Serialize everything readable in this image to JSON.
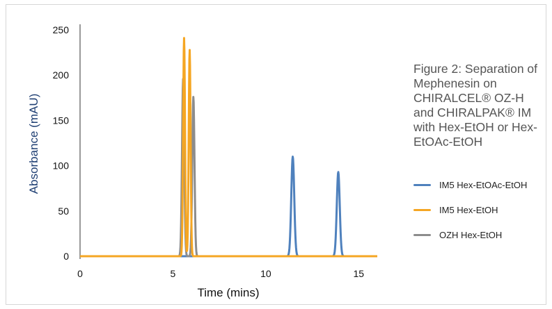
{
  "caption": "Figure 2: Separation of Mephenesin on CHIRALCEL® OZ-H and CHIRALPAK® IM with Hex-EtOH or Hex-EtOAc-EtOH",
  "chart_data": {
    "type": "line",
    "xlabel": "Time (mins)",
    "ylabel": "Absorbance (mAU)",
    "xlim": [
      0,
      16
    ],
    "ylim": [
      0,
      250
    ],
    "xticks": [
      0,
      5,
      10,
      15
    ],
    "yticks": [
      0,
      50,
      100,
      150,
      200,
      250
    ],
    "grid": false,
    "legend_position": "right",
    "series": [
      {
        "name": "IM5 Hex-EtOAc-EtOH",
        "color": "#4f81bd",
        "peaks": [
          {
            "time": 11.45,
            "height": 110,
            "width": 0.08
          },
          {
            "time": 13.9,
            "height": 93,
            "width": 0.08
          }
        ]
      },
      {
        "name": "IM5 Hex-EtOH",
        "color": "#f5a623",
        "peaks": [
          {
            "time": 5.6,
            "height": 241,
            "width": 0.05
          },
          {
            "time": 5.9,
            "height": 228,
            "width": 0.05
          }
        ]
      },
      {
        "name": "OZH Hex-EtOH",
        "color": "#8c8c8c",
        "peaks": [
          {
            "time": 5.55,
            "height": 196,
            "width": 0.06
          },
          {
            "time": 6.1,
            "height": 176,
            "width": 0.06
          }
        ]
      }
    ]
  }
}
